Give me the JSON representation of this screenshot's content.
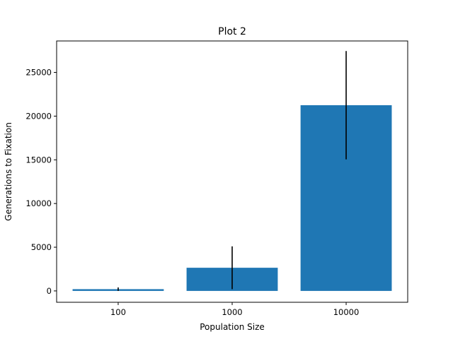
{
  "chart_data": {
    "type": "bar",
    "title": "Plot 2",
    "xlabel": "Population Size",
    "ylabel": "Generations to Fixation",
    "categories": [
      "100",
      "1000",
      "10000"
    ],
    "values": [
      200,
      2650,
      21250
    ],
    "errors": [
      200,
      2450,
      6200
    ],
    "ylim": [
      -1300,
      28600
    ],
    "yticks": [
      0,
      5000,
      10000,
      15000,
      20000,
      25000
    ],
    "ytick_labels": [
      "0",
      "5000",
      "10000",
      "15000",
      "20000",
      "25000"
    ],
    "grid": false,
    "bar_color": "#1f77b4",
    "error_color": "#000000"
  }
}
